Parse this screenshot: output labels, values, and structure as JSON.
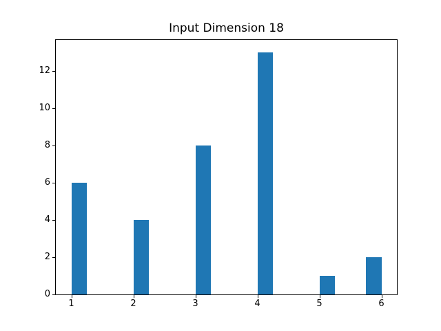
{
  "figure": {
    "background": "#ffffff"
  },
  "chart_data": {
    "type": "bar",
    "title": "Input Dimension 18",
    "xlabel": "",
    "ylabel": "",
    "categories": [
      1,
      2,
      3,
      4,
      5,
      6
    ],
    "values": [
      6,
      4,
      8,
      13,
      1,
      2
    ],
    "bars": [
      {
        "x_left": 1.0,
        "x_right": 1.25,
        "value": 6
      },
      {
        "x_left": 2.0,
        "x_right": 2.25,
        "value": 4
      },
      {
        "x_left": 3.0,
        "x_right": 3.25,
        "value": 8
      },
      {
        "x_left": 4.0,
        "x_right": 4.25,
        "value": 13
      },
      {
        "x_left": 5.0,
        "x_right": 5.25,
        "value": 1
      },
      {
        "x_left": 5.75,
        "x_right": 6.0,
        "value": 2
      }
    ],
    "xticks": [
      {
        "pos": 1,
        "label": "1"
      },
      {
        "pos": 2,
        "label": "2"
      },
      {
        "pos": 3,
        "label": "3"
      },
      {
        "pos": 4,
        "label": "4"
      },
      {
        "pos": 5,
        "label": "5"
      },
      {
        "pos": 6,
        "label": "6"
      }
    ],
    "yticks": [
      {
        "pos": 0,
        "label": "0"
      },
      {
        "pos": 2,
        "label": "2"
      },
      {
        "pos": 4,
        "label": "4"
      },
      {
        "pos": 6,
        "label": "6"
      },
      {
        "pos": 8,
        "label": "8"
      },
      {
        "pos": 10,
        "label": "10"
      },
      {
        "pos": 12,
        "label": "12"
      }
    ],
    "xlim": [
      0.75,
      6.25
    ],
    "ylim": [
      0,
      13.65
    ],
    "bar_color": "#1f77b4",
    "axis_color": "#000000",
    "grid": false,
    "legend": null
  }
}
